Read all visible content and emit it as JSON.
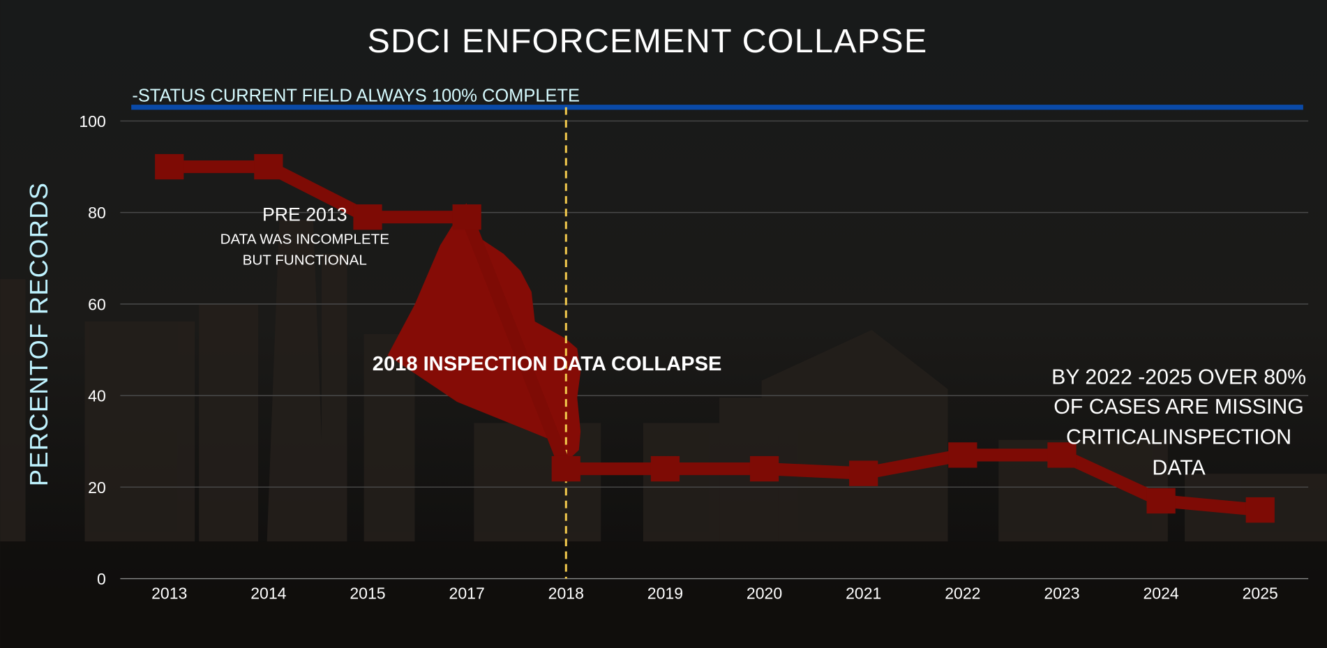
{
  "chart_data": {
    "type": "line",
    "title": "SDCI  ENFORCEMENT COLLAPSE",
    "ylabel": "PERCENTOF RECORDS",
    "xlabel": "",
    "categories": [
      "2013",
      "2014",
      "2015",
      "2017",
      "2018",
      "2019",
      "2020",
      "2021",
      "2022",
      "2023",
      "2024",
      "2025"
    ],
    "series": [
      {
        "values": [
          90,
          90,
          79,
          79,
          24,
          24,
          24,
          23,
          27,
          27,
          17,
          15
        ],
        "color": "#7e0b05"
      }
    ],
    "reference_line": {
      "label": "-STATUS CURRENT FIELD ALWAYS 100% COMPLETE",
      "value": 103,
      "color": "#0a4aa8"
    },
    "vertical_marker": {
      "category": "2018",
      "color": "#f2c94c",
      "style": "dashed"
    },
    "yticks": [
      0,
      20,
      40,
      60,
      80,
      100
    ],
    "ylim": [
      0,
      103
    ],
    "grid": true,
    "annotations": [
      {
        "lines": [
          "PRE 2013",
          "DATA WAS INCOMPLETE",
          "BUT FUNCTIONAL"
        ]
      },
      {
        "lines": [
          "2018  INSPECTION DATA COLLAPSE"
        ]
      },
      {
        "lines": [
          "BY 2022 -2025 OVER 80%",
          "OF CASES ARE MISSING",
          "CRITICALINSPECTION",
          "DATA"
        ]
      }
    ],
    "colors": {
      "background": "#151515",
      "text": "#ffffff",
      "ylabel": "#bff3ff",
      "reference_label": "#d6fbff",
      "grid": "#4a4a4a"
    }
  }
}
